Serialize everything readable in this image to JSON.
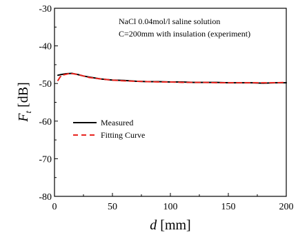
{
  "chart_data": {
    "type": "line",
    "annotation": [
      "NaCl 0.04mol/l saline solution",
      "C=200mm with insulation (experiment)"
    ],
    "xlabel": {
      "var": "d",
      "unit": " [mm]"
    },
    "ylabel": {
      "var": "F",
      "sub": "t",
      "unit": " [dB]"
    },
    "xlim": [
      0,
      200
    ],
    "ylim": [
      -80,
      -30
    ],
    "xticks": [
      0,
      50,
      100,
      150,
      200
    ],
    "yticks": [
      -80,
      -70,
      -60,
      -50,
      -40,
      -30
    ],
    "grid": false,
    "legend_position": "center-left",
    "series": [
      {
        "name": "Measured",
        "color": "#000000",
        "dash": "solid",
        "x": [
          3,
          6,
          10,
          15,
          20,
          25,
          30,
          40,
          50,
          60,
          70,
          80,
          90,
          100,
          110,
          120,
          130,
          140,
          150,
          160,
          170,
          180,
          190,
          200
        ],
        "y": [
          -47.8,
          -47.6,
          -47.4,
          -47.3,
          -47.6,
          -48.0,
          -48.3,
          -48.8,
          -49.1,
          -49.2,
          -49.4,
          -49.5,
          -49.5,
          -49.6,
          -49.6,
          -49.7,
          -49.7,
          -49.7,
          -49.8,
          -49.8,
          -49.8,
          -49.9,
          -49.8,
          -49.8
        ]
      },
      {
        "name": "Fitting Curve",
        "color": "#e8231d",
        "dash": "dashed",
        "x": [
          3,
          5,
          8,
          12,
          16,
          20,
          25,
          30,
          40,
          50,
          60,
          70,
          80,
          90,
          100,
          110,
          120,
          130,
          140,
          150,
          160,
          170,
          180,
          190,
          200
        ],
        "y": [
          -49.2,
          -48.2,
          -47.7,
          -47.4,
          -47.4,
          -47.6,
          -48.0,
          -48.4,
          -48.8,
          -49.1,
          -49.3,
          -49.4,
          -49.5,
          -49.6,
          -49.6,
          -49.7,
          -49.7,
          -49.7,
          -49.8,
          -49.8,
          -49.8,
          -49.8,
          -49.8,
          -49.8,
          -49.7
        ]
      }
    ]
  }
}
